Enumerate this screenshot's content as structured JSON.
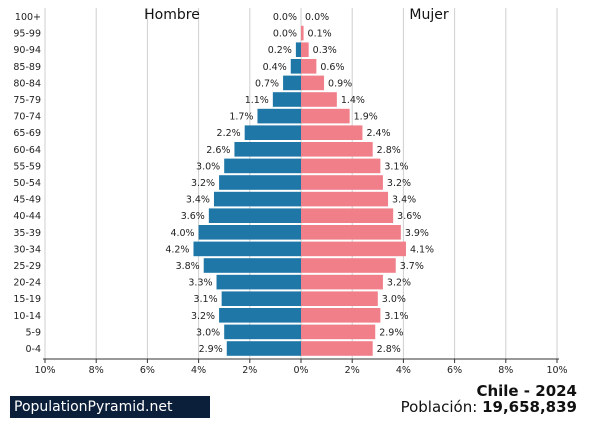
{
  "chart_data": {
    "type": "bar",
    "orientation": "horizontal-pyramid",
    "categories": [
      "100+",
      "95-99",
      "90-94",
      "85-89",
      "80-84",
      "75-79",
      "70-74",
      "65-69",
      "60-64",
      "55-59",
      "50-54",
      "45-49",
      "40-44",
      "35-39",
      "30-34",
      "25-29",
      "20-24",
      "15-19",
      "10-14",
      "5-9",
      "0-4"
    ],
    "series": [
      {
        "name": "Hombre",
        "color": "#1f77a8",
        "values": [
          0.0,
          0.0,
          0.2,
          0.4,
          0.7,
          1.1,
          1.7,
          2.2,
          2.6,
          3.0,
          3.2,
          3.4,
          3.6,
          4.0,
          4.2,
          3.8,
          3.3,
          3.1,
          3.2,
          3.0,
          2.9
        ],
        "labels": [
          "0.0%",
          "0.0%",
          "0.2%",
          "0.4%",
          "0.7%",
          "1.1%",
          "1.7%",
          "2.2%",
          "2.6%",
          "3.0%",
          "3.2%",
          "3.4%",
          "3.6%",
          "4.0%",
          "4.2%",
          "3.8%",
          "3.3%",
          "3.1%",
          "3.2%",
          "3.0%",
          "2.9%"
        ]
      },
      {
        "name": "Mujer",
        "color": "#f07f8a",
        "values": [
          0.0,
          0.1,
          0.3,
          0.6,
          0.9,
          1.4,
          1.9,
          2.4,
          2.8,
          3.1,
          3.2,
          3.4,
          3.6,
          3.9,
          4.1,
          3.7,
          3.2,
          3.0,
          3.1,
          2.9,
          2.8
        ],
        "labels": [
          "0.0%",
          "0.1%",
          "0.3%",
          "0.6%",
          "0.9%",
          "1.4%",
          "1.9%",
          "2.4%",
          "2.8%",
          "3.1%",
          "3.2%",
          "3.4%",
          "3.6%",
          "3.9%",
          "4.1%",
          "3.7%",
          "3.2%",
          "3.0%",
          "3.1%",
          "2.9%",
          "2.8%"
        ]
      }
    ],
    "xlim": [
      -10,
      10
    ],
    "x_tick_values": [
      -10,
      -8,
      -6,
      -4,
      -2,
      0,
      2,
      4,
      6,
      8,
      10
    ],
    "x_tick_labels": [
      "10%",
      "8%",
      "6%",
      "4%",
      "2%",
      "0%",
      "2%",
      "4%",
      "6%",
      "8%",
      "10%"
    ]
  },
  "footer": {
    "brand": "PopulationPyramid.net",
    "country_year": "Chile - 2024",
    "population_label": "Población:",
    "population_value": "19,658,839"
  }
}
